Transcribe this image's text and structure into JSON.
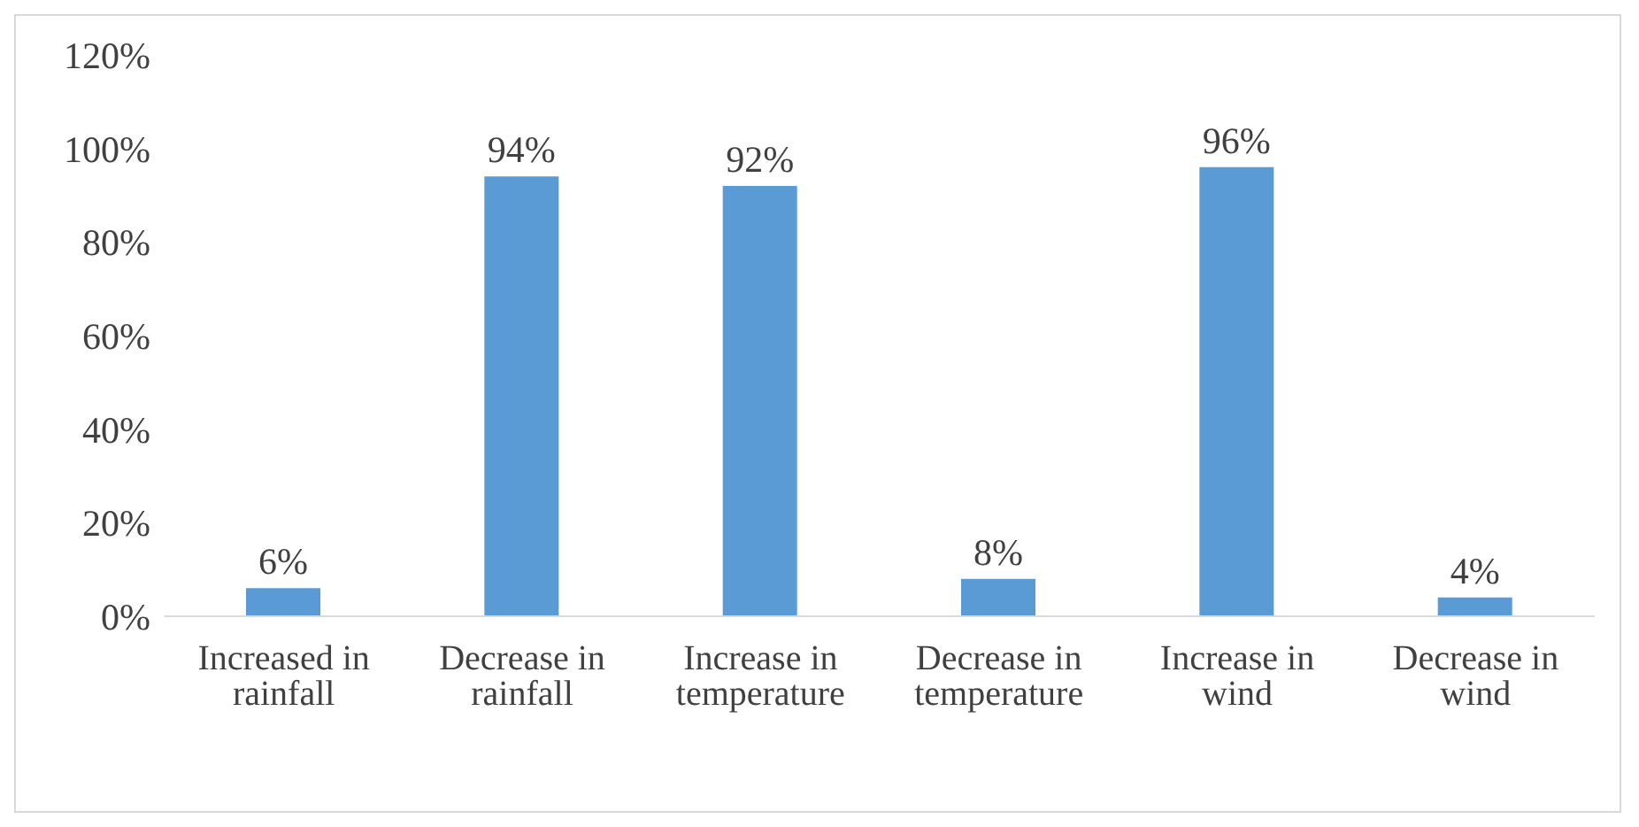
{
  "chart_data": {
    "type": "bar",
    "categories": [
      "Increased in rainfall",
      "Decrease in rainfall",
      "Increase in temperature",
      "Decrease in temperature",
      "Increase in wind",
      "Decrease in wind"
    ],
    "values": [
      6,
      94,
      92,
      8,
      96,
      4
    ],
    "value_labels": [
      "6%",
      "94%",
      "92%",
      "8%",
      "96%",
      "4%"
    ],
    "color": "#5b9bd5",
    "ylim": [
      0,
      120
    ],
    "yticks": [
      {
        "value": 0,
        "label": "0%"
      },
      {
        "value": 20,
        "label": "20%"
      },
      {
        "value": 40,
        "label": "40%"
      },
      {
        "value": 60,
        "label": "60%"
      },
      {
        "value": 80,
        "label": "80%"
      },
      {
        "value": 100,
        "label": "100%"
      },
      {
        "value": 120,
        "label": "120%"
      }
    ],
    "grid": false,
    "legend": false
  }
}
